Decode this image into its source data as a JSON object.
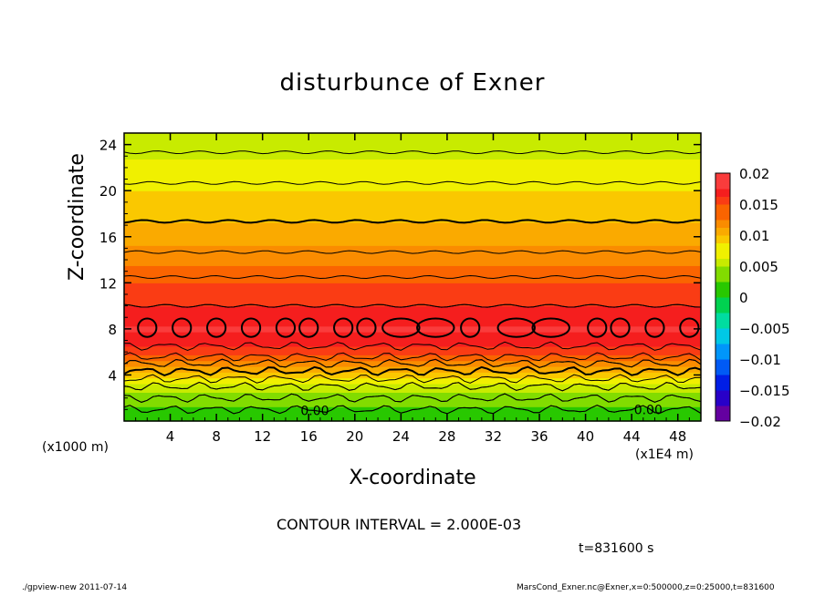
{
  "chart_data": {
    "type": "heatmap",
    "title": "disturbunce of Exner",
    "xlabel": "X-coordinate",
    "ylabel": "Z-coordinate",
    "x_unit_note": "(x1000 m)",
    "x_scale_note": "(x1E4 m)",
    "xlim": [
      0,
      50
    ],
    "ylim": [
      0,
      25
    ],
    "x_ticks": [
      4,
      8,
      12,
      16,
      20,
      24,
      28,
      32,
      36,
      40,
      44,
      48
    ],
    "y_ticks": [
      4,
      8,
      12,
      16,
      20,
      24
    ],
    "colorbar": {
      "ticks": [
        0.02,
        0.015,
        0.01,
        0.005,
        0,
        -0.005,
        -0.01,
        -0.015,
        -0.02
      ],
      "tick_labels": [
        "0.02",
        "0.015",
        "0.01",
        "0.005",
        "0",
        "−0.005",
        "−0.01",
        "−0.015",
        "−0.02"
      ],
      "range": [
        -0.02,
        0.02
      ]
    },
    "vertical_profile": {
      "z": [
        0,
        1,
        2,
        3,
        4,
        5,
        6,
        7,
        8,
        9,
        10,
        12,
        14,
        16,
        18,
        20,
        22,
        24,
        25
      ],
      "value": [
        0.0,
        0.002,
        0.004,
        0.006,
        0.009,
        0.012,
        0.0155,
        0.0165,
        0.018,
        0.0165,
        0.016,
        0.0145,
        0.0125,
        0.011,
        0.0095,
        0.0085,
        0.007,
        0.0055,
        0.005
      ]
    },
    "contour_annotations": [
      "0.00",
      "0.00"
    ],
    "contour_interval_label": "CONTOUR INTERVAL = 2.000E-03",
    "time_label": "t=831600 s",
    "grid": false
  },
  "footer": {
    "left": "./gpview-new   2011-07-14",
    "right": "MarsCond_Exner.nc@Exner,x=0:500000,z=0:25000,t=831600"
  }
}
